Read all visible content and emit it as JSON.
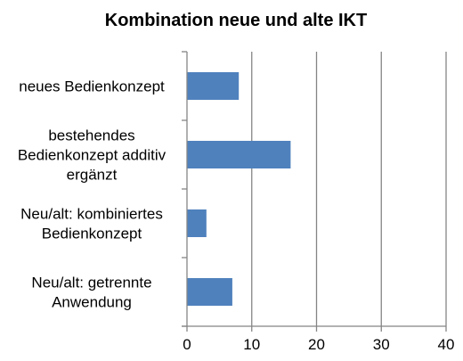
{
  "chart_data": {
    "type": "bar",
    "orientation": "horizontal",
    "title": "Kombination neue und alte IKT",
    "categories": [
      [
        "neues Bedienkonzept"
      ],
      [
        "bestehendes",
        "Bedienkonzept additiv",
        "ergänzt"
      ],
      [
        "Neu/alt: kombiniertes",
        "Bedienkonzept"
      ],
      [
        "Neu/alt: getrennte",
        "Anwendung"
      ]
    ],
    "values": [
      8,
      16,
      3,
      7
    ],
    "xlim": [
      0,
      40
    ],
    "xticks": [
      0,
      10,
      20,
      30,
      40
    ],
    "grid": true,
    "bar_color": "#4f81bd",
    "grid_color": "#858585",
    "axis_color": "#858585"
  }
}
